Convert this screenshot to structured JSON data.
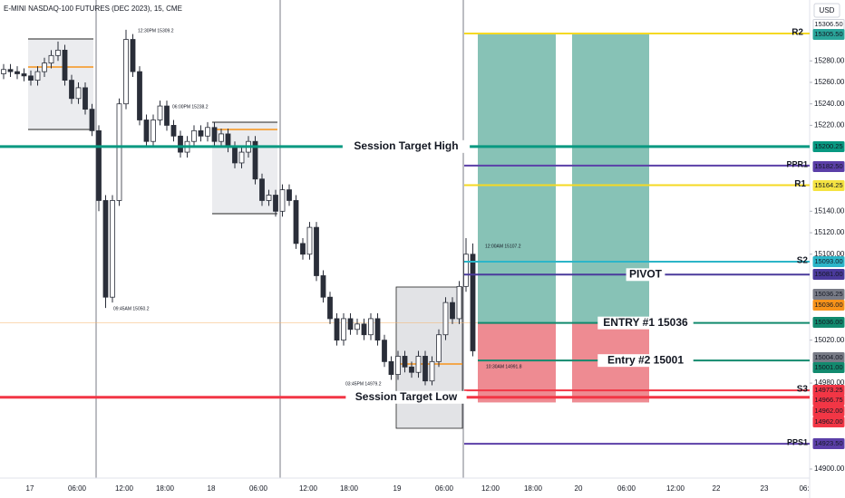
{
  "chart_data": {
    "type": "candlestick",
    "title": "E-MINI NASDAQ-100 FUTURES (DEC 2023), 15, CME",
    "currency": "USD",
    "ylim": [
      14898.3,
      15336.7
    ],
    "yticks": [
      {
        "value": 15280,
        "label": "15280.00"
      },
      {
        "value": 15260,
        "label": "15260.00"
      },
      {
        "value": 15240,
        "label": "15240.00"
      },
      {
        "value": 15220,
        "label": "15220.00"
      },
      {
        "value": 15140,
        "label": "15140.00"
      },
      {
        "value": 15120,
        "label": "15120.00"
      },
      {
        "value": 15100,
        "label": "15100.00"
      },
      {
        "value": 15020,
        "label": "15020.00"
      },
      {
        "value": 14980,
        "label": "14980.00"
      },
      {
        "value": 14900,
        "label": "14900.00"
      }
    ],
    "x_labels": [
      "17",
      "06:00",
      "12:00",
      "18:00",
      "18",
      "06:00",
      "12:00",
      "18:00",
      "19",
      "06:00",
      "12:00",
      "18:00",
      "20",
      "06:00",
      "12:00",
      "22",
      "23",
      "06:"
    ],
    "open": [
      15268,
      15272,
      15270,
      15268,
      15266,
      15262,
      15270,
      15278,
      15285,
      15290,
      15262,
      15245,
      15255,
      15235,
      15215,
      15150,
      15060,
      15150,
      15240,
      15300,
      15270,
      15225,
      15205,
      15225,
      15238,
      15220,
      15210,
      15195,
      15205,
      15215,
      15210,
      15218,
      15205,
      15212,
      15200,
      15185,
      15195,
      15205,
      15170,
      15150,
      15155,
      15140,
      15160,
      15150,
      15110,
      15100,
      15125,
      15080,
      15060,
      15040,
      15020,
      15040,
      15030,
      15035,
      15025,
      15040,
      15020,
      15000,
      14988,
      15005,
      14995,
      14990,
      15005,
      14982,
      15000,
      15025,
      15055,
      15040,
      15070,
      15100
    ],
    "close": [
      15272,
      15270,
      15268,
      15266,
      15262,
      15270,
      15278,
      15285,
      15290,
      15262,
      15245,
      15255,
      15235,
      15215,
      15150,
      15060,
      15150,
      15240,
      15300,
      15270,
      15225,
      15205,
      15225,
      15238,
      15220,
      15210,
      15195,
      15205,
      15215,
      15210,
      15218,
      15205,
      15212,
      15200,
      15185,
      15195,
      15205,
      15170,
      15150,
      15155,
      15140,
      15160,
      15150,
      15110,
      15100,
      15125,
      15080,
      15060,
      15040,
      15020,
      15040,
      15030,
      15035,
      15025,
      15040,
      15020,
      15000,
      14988,
      15005,
      14995,
      14990,
      15005,
      14982,
      15000,
      15025,
      15055,
      15040,
      15070,
      15100,
      15010
    ],
    "high": [
      15277,
      15277,
      15275,
      15273,
      15271,
      15275,
      15283,
      15290,
      15298,
      15295,
      15267,
      15260,
      15260,
      15240,
      15220,
      15155,
      15155,
      15245,
      15309,
      15305,
      15275,
      15230,
      15230,
      15243,
      15243,
      15225,
      15215,
      15210,
      15220,
      15220,
      15223,
      15223,
      15217,
      15217,
      15205,
      15200,
      15210,
      15210,
      15175,
      15160,
      15160,
      15165,
      15165,
      15155,
      15115,
      15130,
      15130,
      15085,
      15065,
      15045,
      15045,
      15045,
      15040,
      15040,
      15045,
      15045,
      15025,
      15005,
      15010,
      15010,
      15000,
      15010,
      15010,
      15005,
      15030,
      15060,
      15060,
      15075,
      15115,
      15110
    ],
    "low": [
      15263,
      15265,
      15263,
      15261,
      15257,
      15257,
      15265,
      15273,
      15280,
      15257,
      15240,
      15240,
      15230,
      15210,
      15140,
      15050,
      15055,
      15145,
      15235,
      15265,
      15220,
      15200,
      15200,
      15220,
      15215,
      15205,
      15190,
      15190,
      15200,
      15205,
      15205,
      15200,
      15200,
      15195,
      15180,
      15180,
      15190,
      15165,
      15145,
      15145,
      15135,
      15135,
      15145,
      15105,
      15095,
      15095,
      15075,
      15055,
      15035,
      15015,
      15015,
      15025,
      15025,
      15020,
      15020,
      15015,
      14995,
      14983,
      14983,
      14990,
      14985,
      14985,
      14978,
      14978,
      14995,
      15020,
      15035,
      15035,
      15065,
      15005
    ],
    "current_price": 15036.25,
    "levels": [
      {
        "name": "R2",
        "value": 15305.5,
        "color": "#f5d922"
      },
      {
        "name": "Session Target High",
        "value": 15200.25,
        "color": "#089981"
      },
      {
        "name": "PPR1",
        "value": 15182.5,
        "color": "#5b3fa8"
      },
      {
        "name": "R1",
        "value": 15164.25,
        "color": "#f5d922"
      },
      {
        "name": "S2",
        "value": 15093,
        "color": "#2cb5c8"
      },
      {
        "name": "PIVOT",
        "value": 15081,
        "color": "#4a3a9c"
      },
      {
        "name": "ENTRY #1 15036",
        "value": 15036,
        "color": "#128a6e"
      },
      {
        "name": "Entry #2 15001",
        "value": 15001,
        "color": "#128a6e"
      },
      {
        "name": "S3",
        "value": 14973.25,
        "color": "#f23645"
      },
      {
        "name": "Session Target Low",
        "value": 14966.75,
        "color": "#f23645"
      },
      {
        "name": "PPS1",
        "value": 14923.5,
        "color": "#5b3fa8"
      }
    ],
    "zones": [
      {
        "top": 15305.5,
        "bottom": 15036,
        "color": "#5fae9e"
      },
      {
        "top": 15305.5,
        "bottom": 15036,
        "color": "#5fae9e"
      },
      {
        "top": 15036,
        "bottom": 14962,
        "color": "#e8646e"
      },
      {
        "top": 15036,
        "bottom": 14962,
        "color": "#e8646e"
      }
    ],
    "annotations": [
      "12:30PM 15309.2",
      "06:00PM 15238.2",
      "09:45AM 15050.2",
      "03:45PM 14979.2",
      "12:00AM 15107.2",
      "10:30AM 14991.8"
    ],
    "price_tags": [
      {
        "label": "15306.50",
        "bg": "#ffffff",
        "fg": "#131722"
      },
      {
        "label": "15305.50",
        "bg": "#2aa59a",
        "fg": "#ffffff"
      },
      {
        "label": "15200.25",
        "bg": "#089981",
        "fg": "#ffffff"
      },
      {
        "label": "15182.50",
        "bg": "#5b3fa8",
        "fg": "#ffffff"
      },
      {
        "label": "15164.25",
        "bg": "#f5e342",
        "fg": "#131722"
      },
      {
        "label": "15093.00",
        "bg": "#2cb5c8",
        "fg": "#ffffff"
      },
      {
        "label": "15081.00",
        "bg": "#4a3a9c",
        "fg": "#ffffff"
      },
      {
        "label": "15036.25",
        "bg": "#787b86",
        "fg": "#ffffff"
      },
      {
        "label": "15036.00",
        "bg": "#f7931a",
        "fg": "#ffffff"
      },
      {
        "label": "15036.00",
        "bg": "#128a6e",
        "fg": "#ffffff"
      },
      {
        "label": "15004.00",
        "bg": "#787b86",
        "fg": "#ffffff"
      },
      {
        "label": "15001.00",
        "bg": "#128a6e",
        "fg": "#ffffff"
      },
      {
        "label": "14973.25",
        "bg": "#f23645",
        "fg": "#ffffff"
      },
      {
        "label": "14966.75",
        "bg": "#f23645",
        "fg": "#ffffff"
      },
      {
        "label": "14962.00",
        "bg": "#f23645",
        "fg": "#ffffff"
      },
      {
        "label": "14962.00",
        "bg": "#f23645",
        "fg": "#ffffff"
      },
      {
        "label": "14923.50",
        "bg": "#5b3fa8",
        "fg": "#ffffff"
      }
    ]
  }
}
